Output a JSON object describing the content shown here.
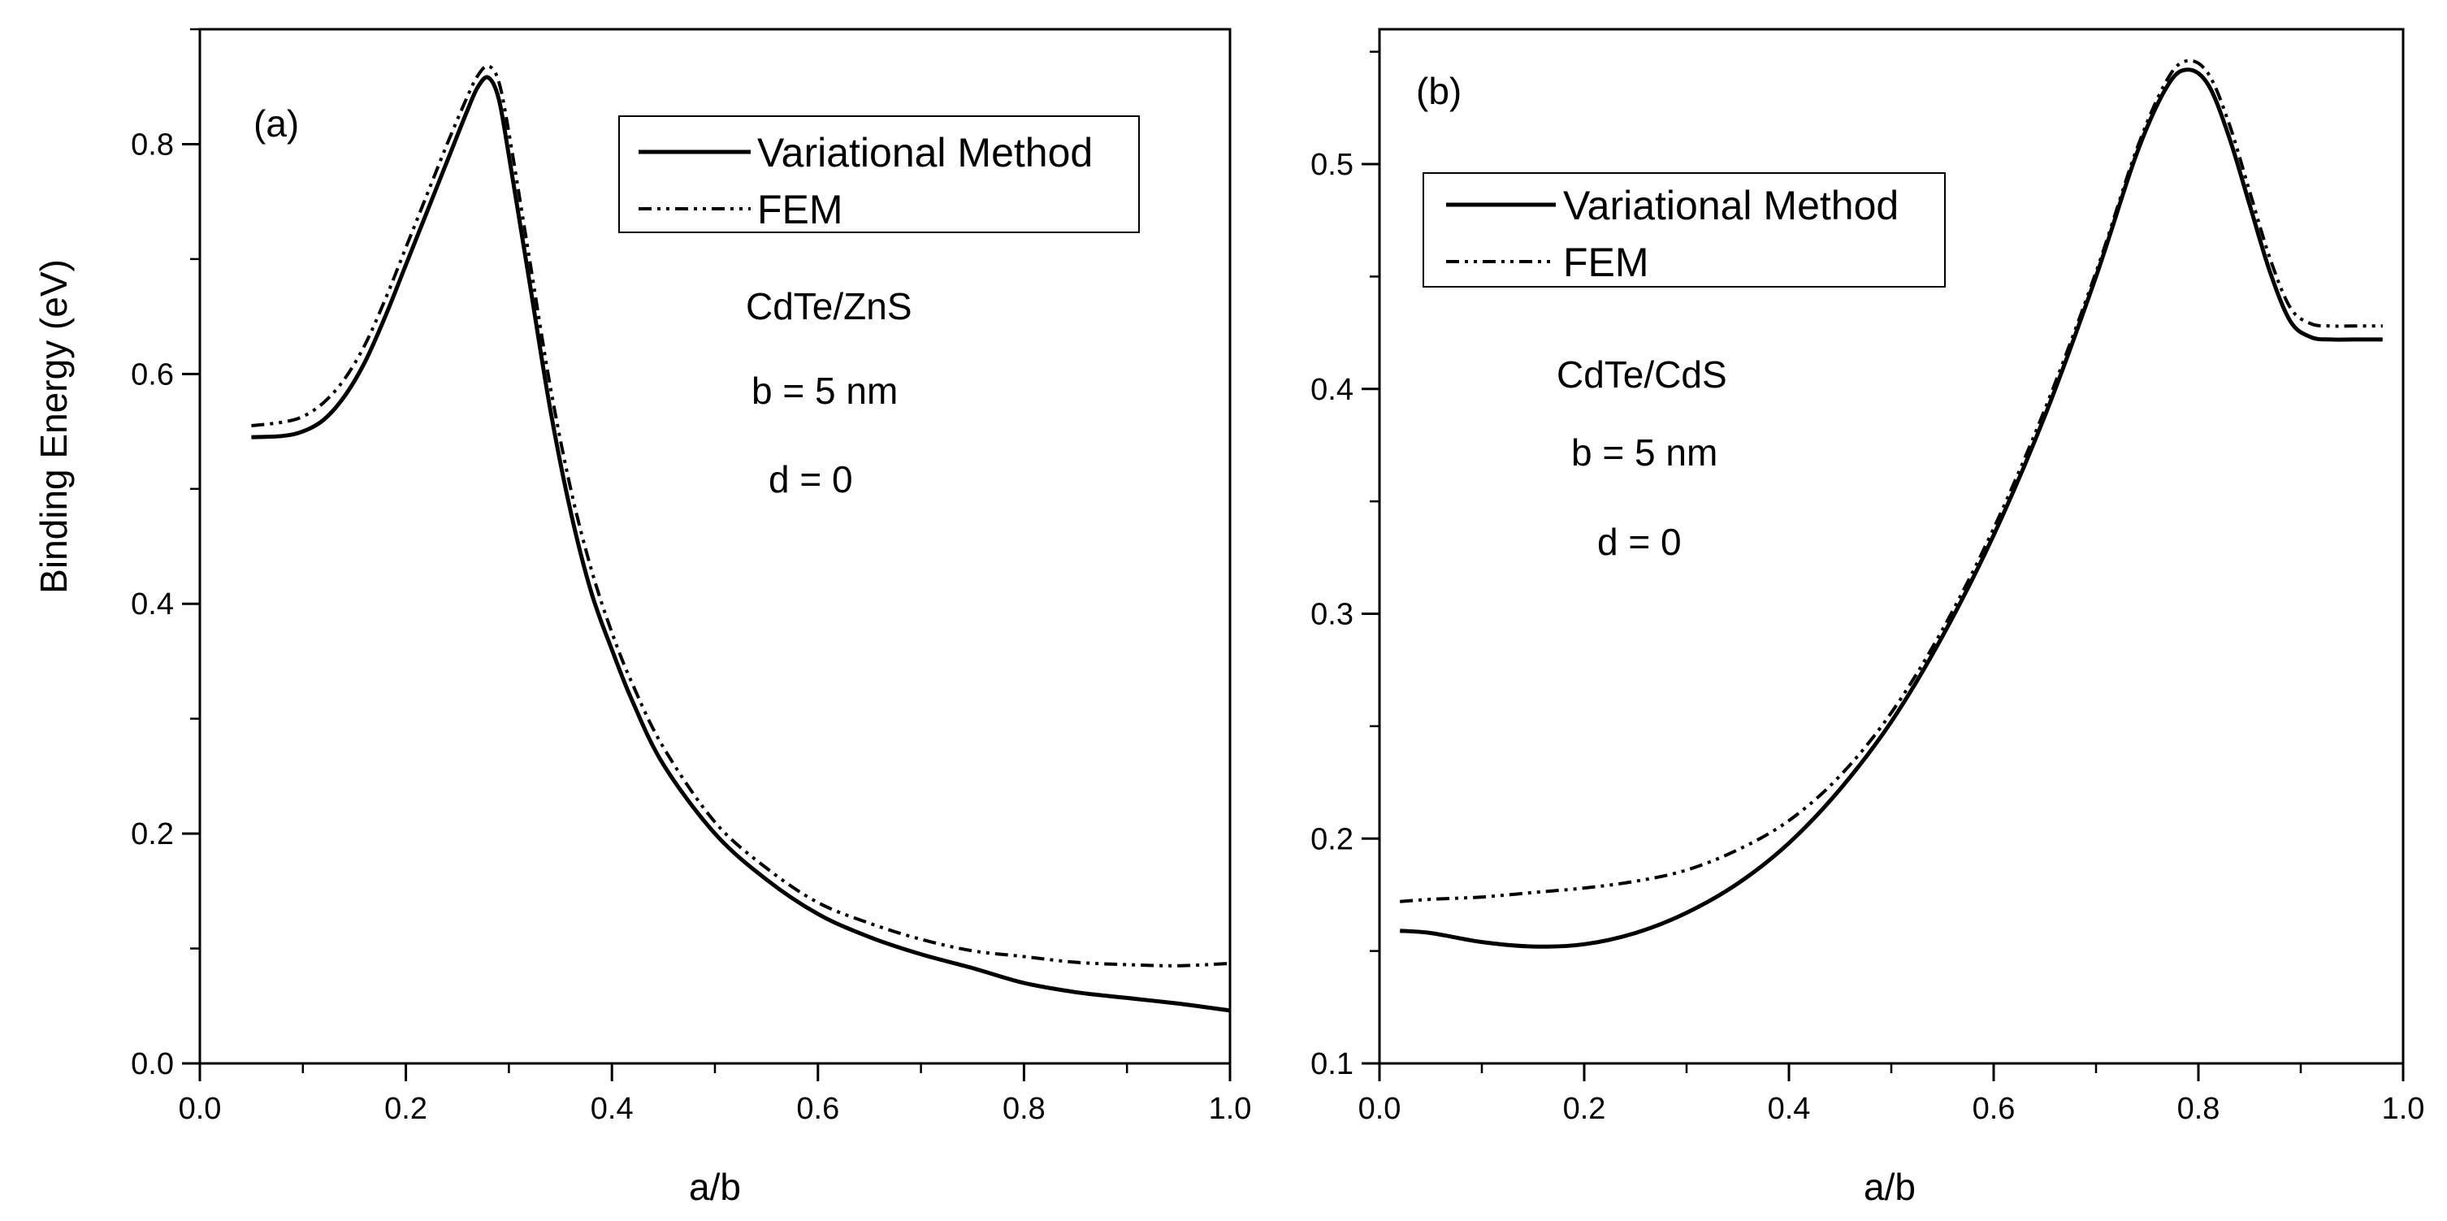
{
  "y_label": "Binding Energy (eV)",
  "chart_data": [
    {
      "type": "line",
      "panel_label": "(a)",
      "xlabel": "a/b",
      "ylabel": "Binding Energy (eV)",
      "xlim": [
        0.0,
        1.0
      ],
      "ylim": [
        0.0,
        0.9
      ],
      "x_ticks": [
        "0.0",
        "0.2",
        "0.4",
        "0.6",
        "0.8",
        "1.0"
      ],
      "y_ticks": [
        "0.0",
        "0.2",
        "0.4",
        "0.6",
        "0.8"
      ],
      "legend_position": "top-right",
      "annotations": [
        "CdTe/ZnS",
        "b = 5 nm",
        "d = 0"
      ],
      "series": [
        {
          "name": "Variational Method",
          "style": "solid",
          "x": [
            0.05,
            0.08,
            0.1,
            0.12,
            0.14,
            0.16,
            0.18,
            0.2,
            0.22,
            0.24,
            0.26,
            0.27,
            0.28,
            0.29,
            0.3,
            0.32,
            0.34,
            0.36,
            0.38,
            0.4,
            0.42,
            0.45,
            0.5,
            0.55,
            0.6,
            0.65,
            0.7,
            0.75,
            0.8,
            0.85,
            0.9,
            0.95,
            1.0
          ],
          "y": [
            0.545,
            0.546,
            0.55,
            0.56,
            0.58,
            0.61,
            0.65,
            0.695,
            0.74,
            0.785,
            0.83,
            0.85,
            0.858,
            0.84,
            0.79,
            0.68,
            0.57,
            0.48,
            0.41,
            0.36,
            0.315,
            0.26,
            0.2,
            0.16,
            0.13,
            0.11,
            0.095,
            0.083,
            0.07,
            0.062,
            0.057,
            0.052,
            0.046
          ]
        },
        {
          "name": "FEM",
          "style": "dash-dot-dot",
          "x": [
            0.05,
            0.08,
            0.1,
            0.12,
            0.14,
            0.16,
            0.18,
            0.2,
            0.22,
            0.24,
            0.26,
            0.27,
            0.28,
            0.29,
            0.3,
            0.32,
            0.34,
            0.36,
            0.38,
            0.4,
            0.42,
            0.45,
            0.5,
            0.55,
            0.6,
            0.65,
            0.7,
            0.75,
            0.8,
            0.85,
            0.9,
            0.95,
            1.0
          ],
          "y": [
            0.555,
            0.558,
            0.563,
            0.575,
            0.595,
            0.625,
            0.665,
            0.71,
            0.755,
            0.8,
            0.842,
            0.86,
            0.868,
            0.855,
            0.81,
            0.7,
            0.59,
            0.5,
            0.43,
            0.375,
            0.33,
            0.275,
            0.21,
            0.17,
            0.14,
            0.122,
            0.108,
            0.098,
            0.093,
            0.088,
            0.086,
            0.085,
            0.087
          ]
        }
      ]
    },
    {
      "type": "line",
      "panel_label": "(b)",
      "xlabel": "a/b",
      "ylabel": "",
      "xlim": [
        0.0,
        1.0
      ],
      "ylim": [
        0.1,
        0.56
      ],
      "x_ticks": [
        "0.0",
        "0.2",
        "0.4",
        "0.6",
        "0.8",
        "1.0"
      ],
      "y_ticks": [
        "0.1",
        "0.2",
        "0.3",
        "0.4",
        "0.5"
      ],
      "legend_position": "top-left",
      "annotations": [
        "CdTe/CdS",
        "b = 5 nm",
        "d = 0"
      ],
      "series": [
        {
          "name": "Variational Method",
          "style": "solid",
          "x": [
            0.02,
            0.05,
            0.1,
            0.15,
            0.2,
            0.25,
            0.3,
            0.35,
            0.4,
            0.45,
            0.5,
            0.55,
            0.6,
            0.65,
            0.7,
            0.74,
            0.77,
            0.79,
            0.81,
            0.83,
            0.85,
            0.87,
            0.89,
            0.91,
            0.93,
            0.95,
            0.98
          ],
          "y": [
            0.159,
            0.158,
            0.154,
            0.152,
            0.153,
            0.158,
            0.167,
            0.18,
            0.198,
            0.222,
            0.252,
            0.29,
            0.335,
            0.388,
            0.45,
            0.505,
            0.535,
            0.542,
            0.535,
            0.512,
            0.482,
            0.452,
            0.43,
            0.423,
            0.422,
            0.422,
            0.422
          ]
        },
        {
          "name": "FEM",
          "style": "dash-dot-dot",
          "x": [
            0.02,
            0.05,
            0.1,
            0.15,
            0.2,
            0.25,
            0.3,
            0.35,
            0.4,
            0.45,
            0.5,
            0.55,
            0.6,
            0.65,
            0.7,
            0.74,
            0.77,
            0.79,
            0.81,
            0.83,
            0.85,
            0.87,
            0.89,
            0.91,
            0.93,
            0.95,
            0.98
          ],
          "y": [
            0.172,
            0.173,
            0.174,
            0.176,
            0.178,
            0.181,
            0.186,
            0.195,
            0.208,
            0.228,
            0.256,
            0.293,
            0.338,
            0.391,
            0.452,
            0.507,
            0.538,
            0.546,
            0.54,
            0.518,
            0.488,
            0.458,
            0.436,
            0.429,
            0.428,
            0.428,
            0.428
          ]
        }
      ]
    }
  ]
}
